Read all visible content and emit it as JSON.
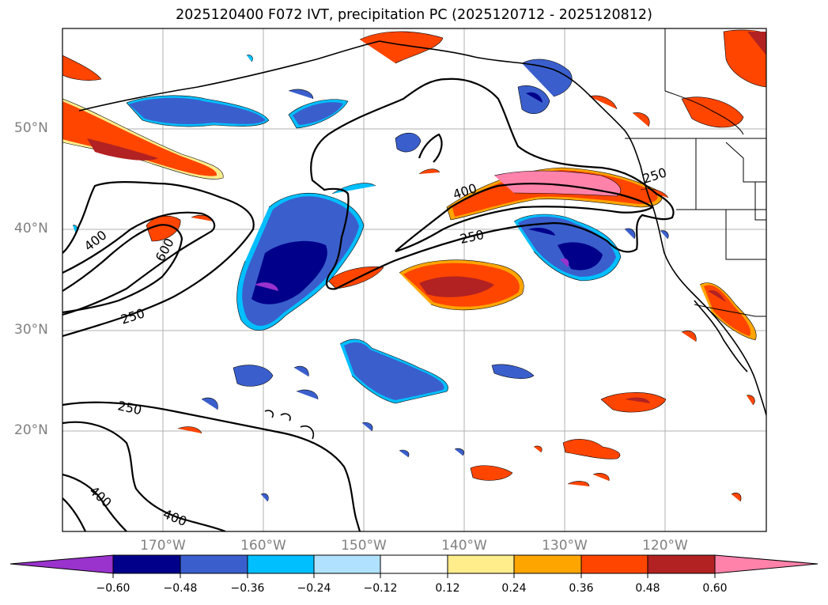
{
  "title": "2025120400 F072 IVT, precipitation PC (2025120712 - 2025120812)",
  "lat_labels": [
    "50°N",
    "40°N",
    "30°N",
    "20°N"
  ],
  "lon_labels": [
    "170°W",
    "160°W",
    "150°W",
    "140°W",
    "130°W",
    "120°W"
  ],
  "contour_labels": {
    "c400_west": "400",
    "c600_west": "600",
    "c250_west": "250",
    "c400_center": "400",
    "c250_center": "250",
    "c250_east": "250",
    "c250_south": "250",
    "c400_south_a": "400",
    "c400_south_b": "400"
  },
  "colorbar": {
    "ticks": [
      "−0.60",
      "−0.48",
      "−0.36",
      "−0.24",
      "−0.12",
      "0.12",
      "0.24",
      "0.36",
      "0.48",
      "0.60"
    ],
    "colors": {
      "lt_neg060": "#9a32cd",
      "neg060_neg048": "#00008b",
      "neg048_neg036": "#3a5fcd",
      "neg036_neg024": "#00bfff",
      "neg024_neg012": "#b0e2ff",
      "neg012_012": "#ffffff",
      "p012_p024": "#ffec8b",
      "p024_p036": "#ffa500",
      "p036_p048": "#ff4500",
      "p048_p060": "#b22222",
      "gt_p060": "#ff82ab"
    }
  },
  "colors": {
    "gridline": "#b0b0b0",
    "contour": "#000000",
    "label": "#808080"
  }
}
